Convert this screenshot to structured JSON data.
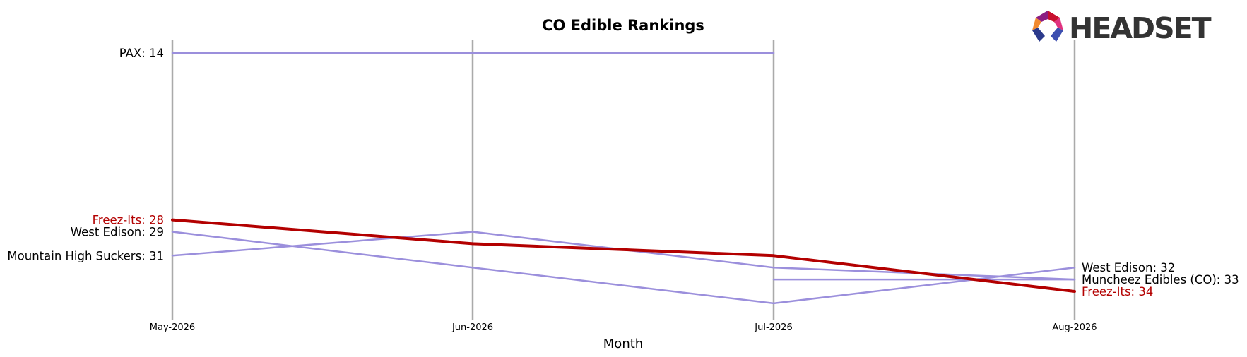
{
  "chart_data": {
    "type": "line",
    "title": "CO Edible Rankings",
    "xlabel": "Month",
    "ylabel": "",
    "y_inverted": true,
    "ylim": [
      37,
      13
    ],
    "categories": [
      "May-2026",
      "Jun-2026",
      "Jul-2026",
      "Aug-2026"
    ],
    "series": [
      {
        "name": "PAX",
        "values": [
          14,
          14,
          14,
          null
        ],
        "color": "#9b8fdc",
        "highlight": false
      },
      {
        "name": "Mountain High Suckers",
        "values": [
          31,
          29,
          32,
          33
        ],
        "color": "#9b8fdc",
        "highlight": false
      },
      {
        "name": "West Edison",
        "values": [
          29,
          32,
          35,
          32
        ],
        "color": "#9b8fdc",
        "highlight": false
      },
      {
        "name": "Muncheez Edibles (CO)",
        "values": [
          null,
          null,
          33,
          33
        ],
        "color": "#9b8fdc",
        "highlight": false
      },
      {
        "name": "Freez-Its",
        "values": [
          28,
          30,
          31,
          34
        ],
        "color": "#b30000",
        "highlight": true
      }
    ],
    "left_labels": [
      {
        "text": "PAX: 14",
        "rank": 14,
        "color": "#000000"
      },
      {
        "text": "Freez-Its: 28",
        "rank": 28,
        "color": "#b30000"
      },
      {
        "text": "West Edison: 29",
        "rank": 29,
        "color": "#000000"
      },
      {
        "text": "Mountain High Suckers: 31",
        "rank": 31,
        "color": "#000000"
      }
    ],
    "right_labels": [
      {
        "text": "West Edison: 32",
        "rank": 32,
        "color": "#000000"
      },
      {
        "text": "Muncheez Edibles (CO): 33",
        "rank": 33,
        "color": "#000000"
      },
      {
        "text": "Freez-Its: 34",
        "rank": 34,
        "color": "#b30000"
      }
    ],
    "grid": false,
    "vertical_month_lines": true
  },
  "logo": {
    "text": "HEADSET",
    "colors": [
      "#f28a2e",
      "#c8102e",
      "#e0327f",
      "#8c1d82",
      "#2b3a8c",
      "#3d4fb0"
    ]
  }
}
